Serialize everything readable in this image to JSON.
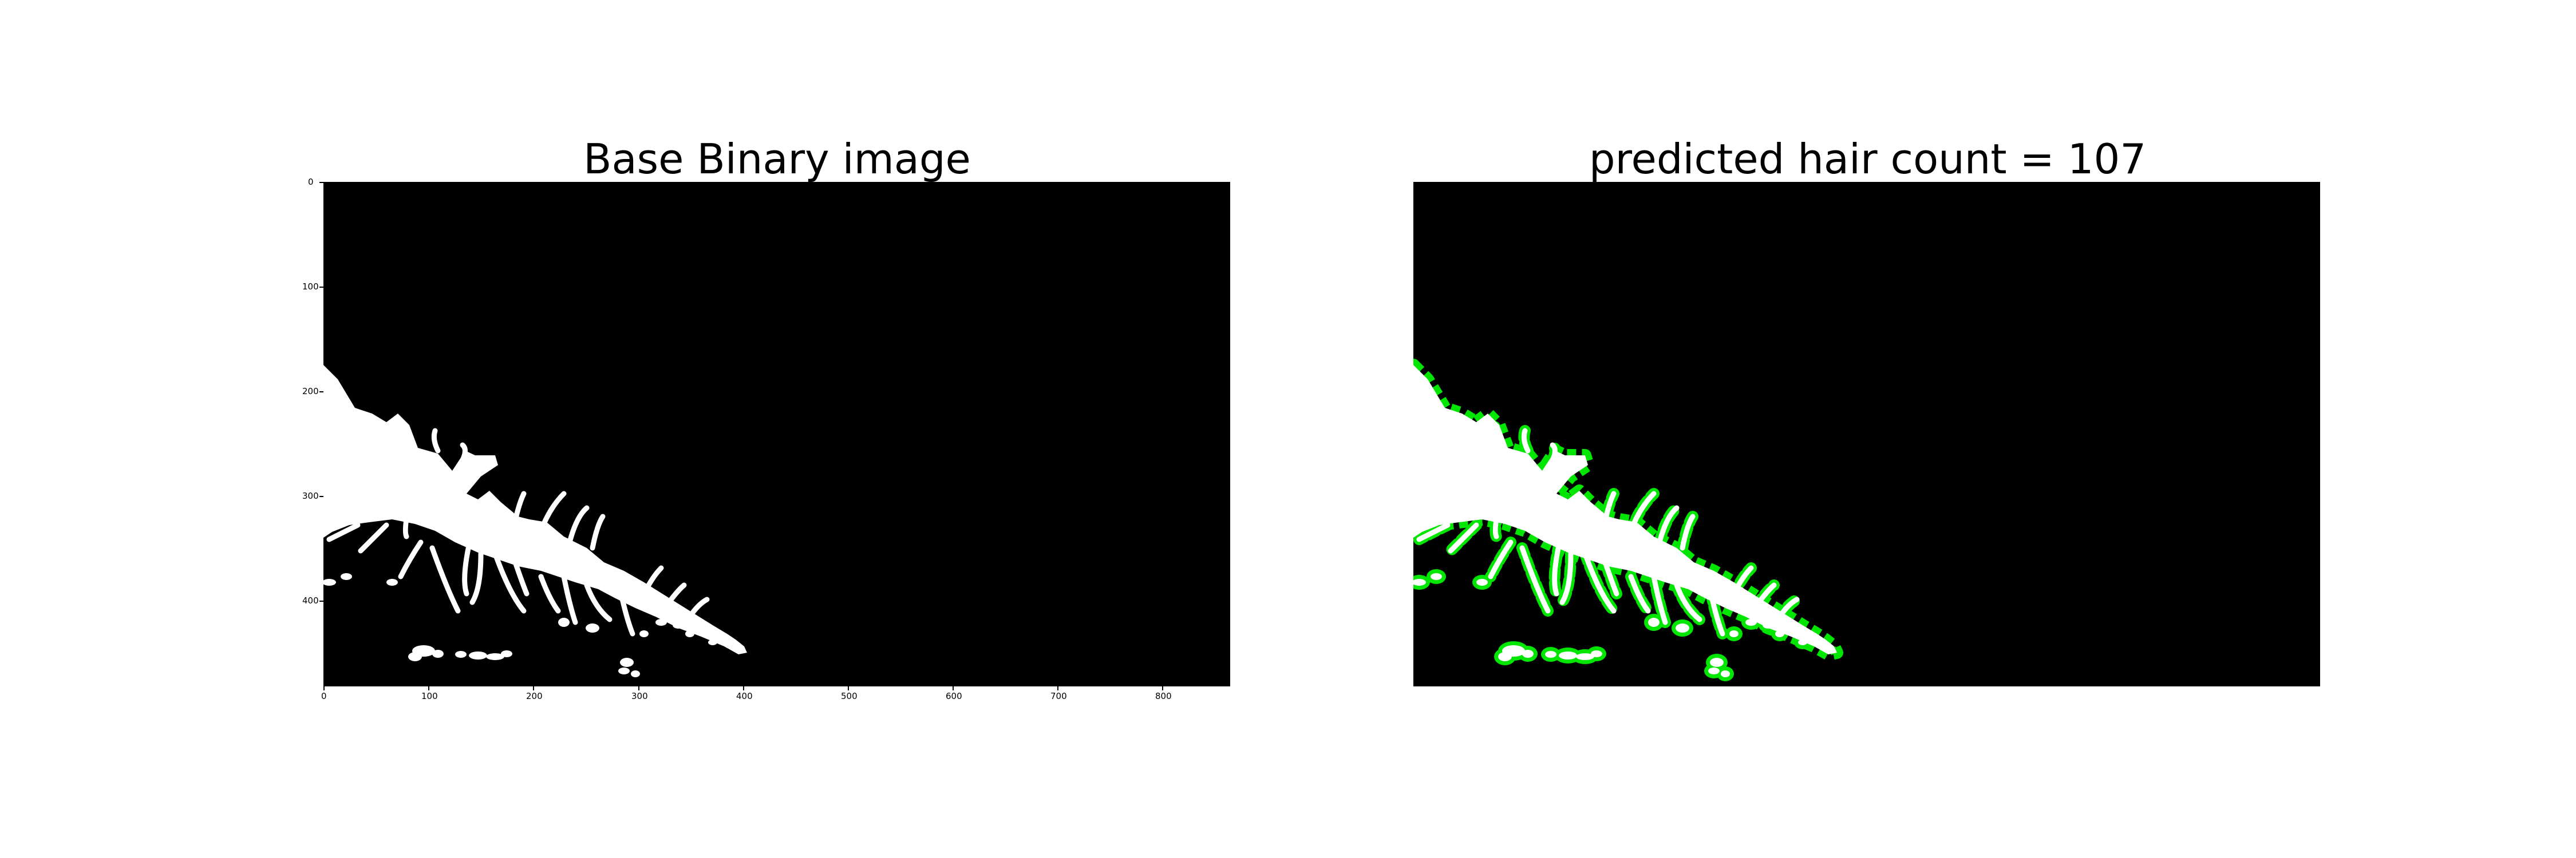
{
  "figure": {
    "left_panel": {
      "title": "Base Binary image",
      "y_ticks": [
        "0",
        "100",
        "200",
        "300",
        "400"
      ],
      "x_ticks": [
        "0",
        "100",
        "200",
        "300",
        "400",
        "500",
        "600",
        "700",
        "800"
      ]
    },
    "right_panel": {
      "title": "predicted hair count = 107"
    }
  },
  "colors": {
    "background": "#000000",
    "mask": "#ffffff",
    "prediction_overlay": "#00e600"
  }
}
